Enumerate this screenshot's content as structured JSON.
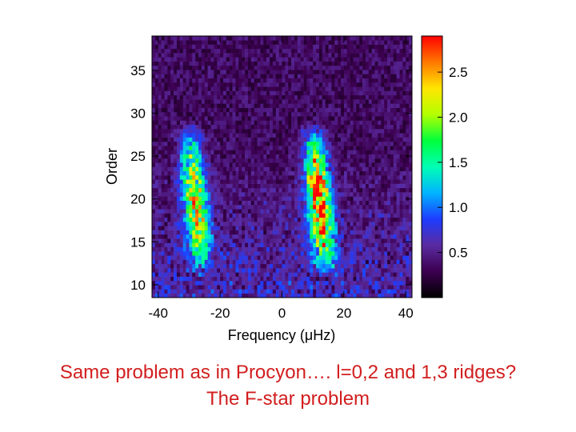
{
  "chart_data": {
    "type": "heatmap",
    "xlabel": "Frequency (μHz)",
    "ylabel": "Order",
    "xlim": [
      -42,
      42
    ],
    "ylim": [
      8.5,
      39
    ],
    "x_ticks": [
      -40,
      -20,
      0,
      20,
      40
    ],
    "y_ticks": [
      10,
      15,
      20,
      25,
      30,
      35
    ],
    "colorbar": {
      "range": [
        0,
        2.9
      ],
      "ticks": [
        0.5,
        1.0,
        1.5,
        2.0,
        2.5
      ],
      "tick_labels": [
        "0.5",
        "1.0",
        "1.5",
        "2.0",
        "2.5"
      ],
      "colormap": "rainbow",
      "colors": [
        "#000000",
        "#3c0050",
        "#5a2aa0",
        "#1e3cff",
        "#00b4ff",
        "#00ffb4",
        "#00ff3c",
        "#b4ff00",
        "#ffe600",
        "#ff7800",
        "#ff0000"
      ]
    },
    "ridges": [
      {
        "center_frequency": -28,
        "order_range": [
          15,
          25
        ],
        "peak_value": 2.1
      },
      {
        "center_frequency": 12,
        "order_range": [
          15,
          25
        ],
        "peak_value": 2.7
      }
    ],
    "background_level": 0.35,
    "low_order_noise_level": 0.8
  },
  "caption": {
    "line1": "Same problem as in Procyon…. l=0,2 and 1,3 ridges?",
    "line2": "The F-star problem"
  }
}
